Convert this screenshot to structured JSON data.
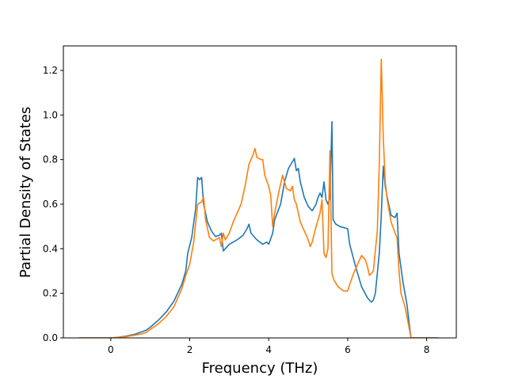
{
  "chart_data": {
    "type": "line",
    "xlabel": "Frequency (THz)",
    "ylabel": "Partial Density of States",
    "xlim": [
      -1.2,
      8.75
    ],
    "ylim": [
      0.0,
      1.31
    ],
    "xticks": [
      0,
      2,
      4,
      6,
      8
    ],
    "xtick_labels": [
      "0",
      "2",
      "4",
      "6",
      "8"
    ],
    "yticks": [
      0.0,
      0.2,
      0.4,
      0.6,
      0.8,
      1.0,
      1.2
    ],
    "ytick_labels": [
      "0.0",
      "0.2",
      "0.4",
      "0.6",
      "0.8",
      "1.0",
      "1.2"
    ],
    "grid": false,
    "legend": false,
    "series": [
      {
        "color": "#1f77b4",
        "points": [
          [
            -0.8,
            0
          ],
          [
            -0.4,
            0
          ],
          [
            0,
            0
          ],
          [
            0.2,
            0.003
          ],
          [
            0.4,
            0.008
          ],
          [
            0.6,
            0.016
          ],
          [
            0.8,
            0.028
          ],
          [
            0.9,
            0.035
          ],
          [
            1.0,
            0.048
          ],
          [
            1.2,
            0.078
          ],
          [
            1.4,
            0.115
          ],
          [
            1.6,
            0.165
          ],
          [
            1.8,
            0.24
          ],
          [
            1.9,
            0.3
          ],
          [
            1.95,
            0.38
          ],
          [
            2.05,
            0.45
          ],
          [
            2.15,
            0.58
          ],
          [
            2.2,
            0.72
          ],
          [
            2.25,
            0.71
          ],
          [
            2.3,
            0.72
          ],
          [
            2.35,
            0.6
          ],
          [
            2.45,
            0.52
          ],
          [
            2.55,
            0.48
          ],
          [
            2.65,
            0.455
          ],
          [
            2.75,
            0.46
          ],
          [
            2.8,
            0.47
          ],
          [
            2.85,
            0.39
          ],
          [
            2.9,
            0.4
          ],
          [
            3.0,
            0.42
          ],
          [
            3.1,
            0.43
          ],
          [
            3.2,
            0.44
          ],
          [
            3.35,
            0.46
          ],
          [
            3.45,
            0.49
          ],
          [
            3.5,
            0.51
          ],
          [
            3.55,
            0.47
          ],
          [
            3.7,
            0.44
          ],
          [
            3.85,
            0.42
          ],
          [
            3.95,
            0.43
          ],
          [
            4.0,
            0.42
          ],
          [
            4.1,
            0.47
          ],
          [
            4.15,
            0.53
          ],
          [
            4.3,
            0.6
          ],
          [
            4.4,
            0.7
          ],
          [
            4.5,
            0.76
          ],
          [
            4.6,
            0.79
          ],
          [
            4.65,
            0.805
          ],
          [
            4.7,
            0.75
          ],
          [
            4.75,
            0.76
          ],
          [
            4.8,
            0.7
          ],
          [
            4.9,
            0.63
          ],
          [
            5.0,
            0.59
          ],
          [
            5.1,
            0.57
          ],
          [
            5.2,
            0.6
          ],
          [
            5.25,
            0.63
          ],
          [
            5.3,
            0.65
          ],
          [
            5.35,
            0.63
          ],
          [
            5.4,
            0.7
          ],
          [
            5.45,
            0.62
          ],
          [
            5.5,
            0.6
          ],
          [
            5.55,
            0.63
          ],
          [
            5.6,
            0.97
          ],
          [
            5.63,
            0.53
          ],
          [
            5.7,
            0.51
          ],
          [
            5.8,
            0.5
          ],
          [
            6.0,
            0.49
          ],
          [
            6.05,
            0.42
          ],
          [
            6.2,
            0.32
          ],
          [
            6.35,
            0.23
          ],
          [
            6.5,
            0.18
          ],
          [
            6.6,
            0.16
          ],
          [
            6.65,
            0.17
          ],
          [
            6.7,
            0.2
          ],
          [
            6.8,
            0.38
          ],
          [
            6.85,
            0.55
          ],
          [
            6.9,
            0.77
          ],
          [
            6.95,
            0.68
          ],
          [
            7.0,
            0.63
          ],
          [
            7.1,
            0.55
          ],
          [
            7.2,
            0.54
          ],
          [
            7.25,
            0.56
          ],
          [
            7.3,
            0.38
          ],
          [
            7.4,
            0.25
          ],
          [
            7.5,
            0.15
          ],
          [
            7.6,
            0.0
          ],
          [
            8.0,
            0
          ],
          [
            8.3,
            0
          ]
        ]
      },
      {
        "color": "#ff7f0e",
        "points": [
          [
            -0.8,
            0
          ],
          [
            -0.4,
            0
          ],
          [
            0,
            0
          ],
          [
            0.2,
            0.002
          ],
          [
            0.4,
            0.006
          ],
          [
            0.6,
            0.012
          ],
          [
            0.8,
            0.018
          ],
          [
            0.9,
            0.025
          ],
          [
            1.0,
            0.038
          ],
          [
            1.2,
            0.062
          ],
          [
            1.4,
            0.095
          ],
          [
            1.6,
            0.14
          ],
          [
            1.8,
            0.22
          ],
          [
            1.9,
            0.28
          ],
          [
            2.0,
            0.33
          ],
          [
            2.1,
            0.43
          ],
          [
            2.2,
            0.6
          ],
          [
            2.3,
            0.61
          ],
          [
            2.35,
            0.63
          ],
          [
            2.4,
            0.53
          ],
          [
            2.5,
            0.45
          ],
          [
            2.6,
            0.435
          ],
          [
            2.7,
            0.445
          ],
          [
            2.75,
            0.45
          ],
          [
            2.8,
            0.41
          ],
          [
            2.85,
            0.47
          ],
          [
            2.9,
            0.44
          ],
          [
            3.0,
            0.47
          ],
          [
            3.1,
            0.52
          ],
          [
            3.2,
            0.56
          ],
          [
            3.3,
            0.6
          ],
          [
            3.4,
            0.68
          ],
          [
            3.5,
            0.78
          ],
          [
            3.6,
            0.82
          ],
          [
            3.65,
            0.85
          ],
          [
            3.7,
            0.81
          ],
          [
            3.8,
            0.8
          ],
          [
            3.85,
            0.8
          ],
          [
            3.9,
            0.73
          ],
          [
            4.0,
            0.68
          ],
          [
            4.05,
            0.64
          ],
          [
            4.1,
            0.5
          ],
          [
            4.15,
            0.56
          ],
          [
            4.25,
            0.65
          ],
          [
            4.35,
            0.73
          ],
          [
            4.4,
            0.7
          ],
          [
            4.45,
            0.67
          ],
          [
            4.55,
            0.66
          ],
          [
            4.6,
            0.68
          ],
          [
            4.65,
            0.62
          ],
          [
            4.7,
            0.6
          ],
          [
            4.8,
            0.52
          ],
          [
            4.9,
            0.48
          ],
          [
            5.0,
            0.44
          ],
          [
            5.05,
            0.41
          ],
          [
            5.1,
            0.43
          ],
          [
            5.2,
            0.5
          ],
          [
            5.3,
            0.56
          ],
          [
            5.35,
            0.62
          ],
          [
            5.4,
            0.38
          ],
          [
            5.45,
            0.36
          ],
          [
            5.5,
            0.4
          ],
          [
            5.55,
            0.84
          ],
          [
            5.6,
            0.29
          ],
          [
            5.65,
            0.26
          ],
          [
            5.75,
            0.23
          ],
          [
            5.9,
            0.21
          ],
          [
            6.0,
            0.21
          ],
          [
            6.05,
            0.24
          ],
          [
            6.15,
            0.29
          ],
          [
            6.25,
            0.33
          ],
          [
            6.35,
            0.37
          ],
          [
            6.45,
            0.35
          ],
          [
            6.5,
            0.32
          ],
          [
            6.55,
            0.28
          ],
          [
            6.65,
            0.3
          ],
          [
            6.75,
            0.48
          ],
          [
            6.8,
            0.78
          ],
          [
            6.85,
            1.25
          ],
          [
            6.9,
            0.9
          ],
          [
            6.95,
            0.7
          ],
          [
            7.0,
            0.62
          ],
          [
            7.1,
            0.52
          ],
          [
            7.2,
            0.47
          ],
          [
            7.25,
            0.45
          ],
          [
            7.3,
            0.3
          ],
          [
            7.35,
            0.2
          ],
          [
            7.45,
            0.14
          ],
          [
            7.55,
            0.05
          ],
          [
            7.6,
            0.0
          ],
          [
            8.0,
            0
          ],
          [
            8.3,
            0
          ]
        ]
      }
    ]
  }
}
